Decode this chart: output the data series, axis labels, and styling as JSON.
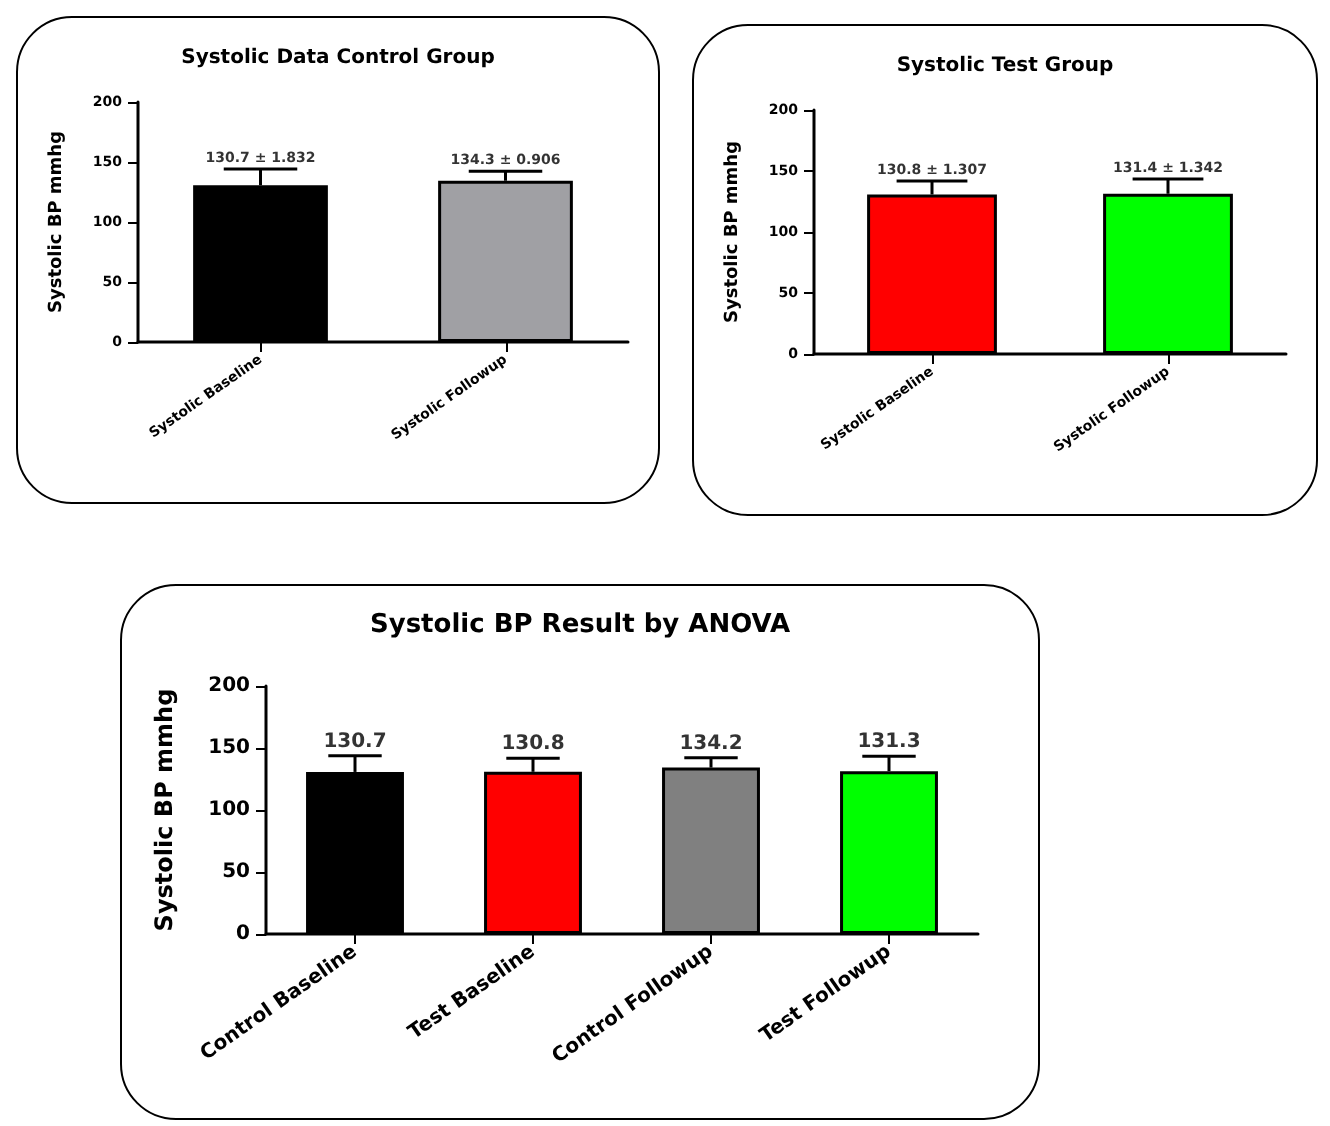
{
  "chart_data": [
    {
      "type": "bar",
      "title": "Systolic Data Control Group",
      "ylabel": "Systolic BP mmhg",
      "categories": [
        "Systolic Baseline",
        "Systolic Followup"
      ],
      "values": [
        130.7,
        134.3
      ],
      "colors": [
        "#000000",
        "#a0a0a4"
      ],
      "errors": [
        13.5,
        8
      ],
      "value_labels": [
        "130.7 ± 1.832",
        "134.3 ± 0.906"
      ],
      "ylim": [
        0,
        200
      ],
      "yticks": [
        0,
        50,
        100,
        150,
        200
      ],
      "grid": false
    },
    {
      "type": "bar",
      "title": "Systolic Test Group",
      "ylabel": "Systolic BP mmhg",
      "categories": [
        "Systolic Baseline",
        "Systolic Followup"
      ],
      "values": [
        130.8,
        131.4
      ],
      "colors": [
        "#ff0000",
        "#00ff00"
      ],
      "errors": [
        11,
        12
      ],
      "value_labels": [
        "130.8 ± 1.307",
        "131.4 ± 1.342"
      ],
      "ylim": [
        0,
        200
      ],
      "yticks": [
        0,
        50,
        100,
        150,
        200
      ],
      "grid": false
    },
    {
      "type": "bar",
      "title": "Systolic BP Result by ANOVA",
      "ylabel": "Systolic BP mmhg",
      "categories": [
        "Control Baseline",
        "Test Baseline",
        "Control Followup",
        "Test Followup"
      ],
      "values": [
        130.7,
        130.8,
        134.2,
        131.3
      ],
      "colors": [
        "#000000",
        "#ff0000",
        "#808080",
        "#00ff00"
      ],
      "errors": [
        13,
        11,
        8,
        12
      ],
      "data_labels": true,
      "ylim": [
        0,
        200
      ],
      "yticks": [
        0,
        50,
        100,
        150,
        200
      ],
      "grid": false
    }
  ]
}
